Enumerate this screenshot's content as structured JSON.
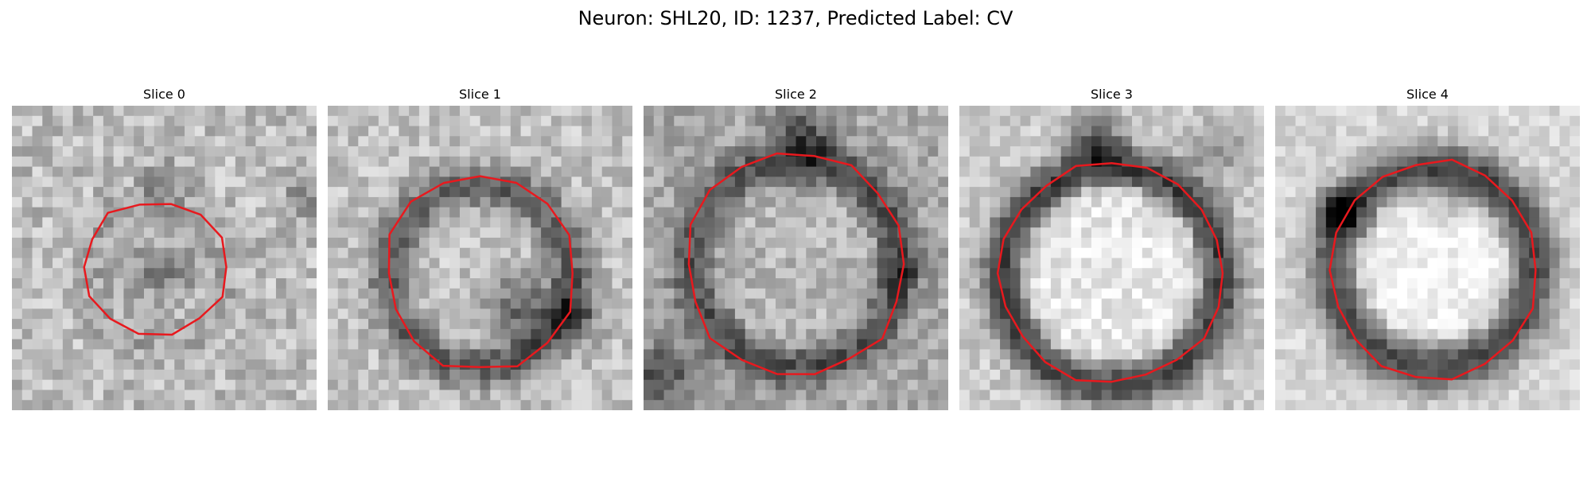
{
  "figure": {
    "title": "Neuron: SHL20, ID: 1237, Predicted Label: CV"
  },
  "colors": {
    "contour": "#e8191e",
    "background": "#ffffff"
  },
  "panels": [
    {
      "title": "Slice 0"
    },
    {
      "title": "Slice 1"
    },
    {
      "title": "Slice 2"
    },
    {
      "title": "Slice 3"
    },
    {
      "title": "Slice 4"
    }
  ]
}
